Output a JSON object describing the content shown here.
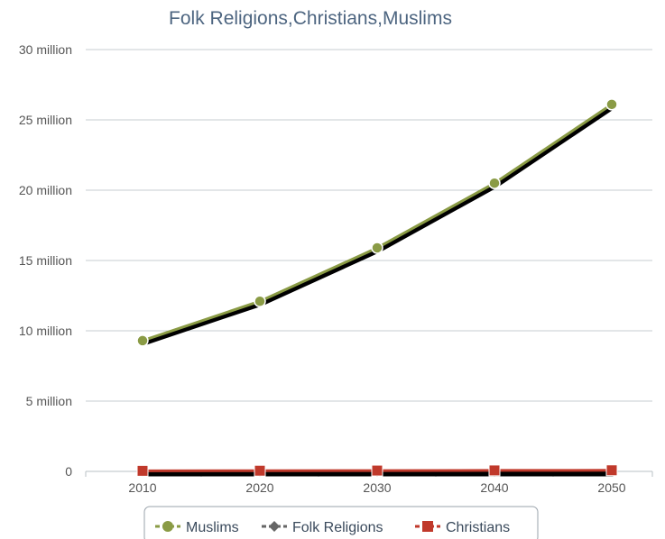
{
  "chart_data": {
    "type": "line",
    "title": "Folk Religions,Christians,Muslims",
    "x": [
      "2010",
      "2020",
      "2030",
      "2040",
      "2050"
    ],
    "y_ticks": [
      "0",
      "5 million",
      "10 million",
      "15 million",
      "20 million",
      "25 million",
      "30 million"
    ],
    "ylim": [
      0,
      30000000
    ],
    "grid": true,
    "legend_placement": "bottom-center",
    "series": [
      {
        "name": "Muslims",
        "values": [
          9300000,
          12100000,
          15900000,
          20500000,
          26100000
        ],
        "color": "#8a9b45",
        "marker": "circle"
      },
      {
        "name": "Folk Religions",
        "values": [
          2000,
          2000,
          2000,
          2000,
          2000
        ],
        "color": "#666666",
        "marker": "diamond"
      },
      {
        "name": "Christians",
        "values": [
          40000,
          50000,
          60000,
          70000,
          80000
        ],
        "color": "#c0392b",
        "marker": "square"
      }
    ]
  }
}
